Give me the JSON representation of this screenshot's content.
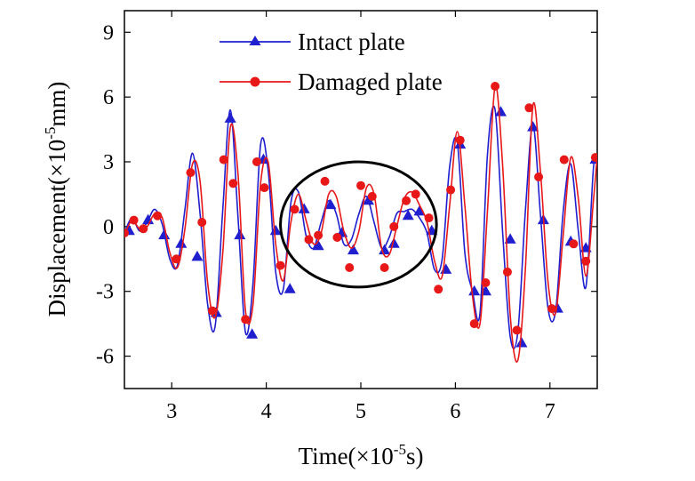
{
  "chart_data": {
    "type": "line",
    "title": "",
    "xlabel": {
      "prefix": "Time(×10",
      "exp": "-5",
      "suffix": "s)"
    },
    "ylabel": {
      "prefix": "Displacement(×10",
      "exp": "-5",
      "suffix": "mm)"
    },
    "xlim": [
      2.5,
      7.5
    ],
    "ylim": [
      -7.5,
      10
    ],
    "xticks": [
      3,
      4,
      5,
      6,
      7
    ],
    "yticks": [
      -6,
      -3,
      0,
      3,
      6,
      9
    ],
    "grid": false,
    "legend_position": "top",
    "annotation": "ellipse around 4.2–5.8 time region",
    "annotation_region": {
      "x": [
        4.15,
        5.8
      ],
      "y": [
        -2.8,
        3.0
      ]
    },
    "series": [
      {
        "name": "Intact plate",
        "color": "#1f1fd0",
        "marker": "triangle",
        "x": [
          2.5,
          2.58,
          2.66,
          2.74,
          2.82,
          2.9,
          2.98,
          3.06,
          3.14,
          3.22,
          3.3,
          3.38,
          3.46,
          3.54,
          3.62,
          3.7,
          3.78,
          3.86,
          3.94,
          4.02,
          4.1,
          4.18,
          4.26,
          4.34,
          4.42,
          4.5,
          4.58,
          4.66,
          4.74,
          4.82,
          4.9,
          4.98,
          5.06,
          5.14,
          5.22,
          5.3,
          5.38,
          5.46,
          5.54,
          5.62,
          5.7,
          5.78,
          5.86,
          5.94,
          6.02,
          6.1,
          6.18,
          6.26,
          6.34,
          6.42,
          6.5,
          6.58,
          6.66,
          6.74,
          6.82,
          6.9,
          6.98,
          7.06,
          7.14,
          7.22,
          7.3,
          7.38,
          7.46,
          7.5
        ],
        "values": [
          -0.3,
          0.4,
          -0.2,
          0.2,
          0.8,
          0.1,
          -1.5,
          -1.8,
          0.8,
          3.4,
          0.6,
          -3.6,
          -4.6,
          0.8,
          5.4,
          0.5,
          -4.9,
          -2.6,
          3.8,
          2.6,
          -2.1,
          -2.9,
          1.1,
          1.6,
          -0.4,
          -1.0,
          0.2,
          1.2,
          0.6,
          -0.8,
          -0.6,
          0.6,
          1.4,
          0.2,
          -1.0,
          -0.5,
          0.6,
          0.7,
          0.8,
          0.4,
          -0.3,
          -2.0,
          -1.5,
          2.8,
          3.9,
          -1.2,
          -3.0,
          -4.0,
          3.4,
          5.4,
          -0.3,
          -5.1,
          -4.9,
          0.7,
          4.7,
          0.5,
          -3.8,
          -3.9,
          0.7,
          2.9,
          -0.2,
          -2.8,
          2.7,
          3.1
        ],
        "markers_x": [
          2.55,
          2.75,
          2.92,
          3.1,
          3.27,
          3.47,
          3.62,
          3.72,
          3.85,
          3.97,
          4.1,
          4.25,
          4.4,
          4.55,
          4.68,
          4.8,
          4.92,
          5.08,
          5.25,
          5.35,
          5.5,
          5.62,
          5.75,
          5.9,
          6.05,
          6.2,
          6.32,
          6.48,
          6.58,
          6.7,
          6.82,
          6.93,
          7.08,
          7.22,
          7.38,
          7.48
        ],
        "markers_values": [
          -0.2,
          0.3,
          -0.4,
          -0.8,
          -1.4,
          -4.0,
          5.0,
          -0.4,
          -5.0,
          3.1,
          -0.2,
          -2.9,
          0.8,
          -0.9,
          1.0,
          -0.3,
          -1.1,
          1.2,
          -1.1,
          -0.8,
          0.5,
          0.7,
          -0.2,
          -2.0,
          3.8,
          -3.0,
          -3.0,
          5.3,
          -0.6,
          -5.4,
          4.6,
          0.3,
          -3.8,
          -0.7,
          -1.0,
          3.1
        ]
      },
      {
        "name": "Damaged plate",
        "color": "#e81818",
        "marker": "circle",
        "x": [
          2.5,
          2.58,
          2.66,
          2.74,
          2.82,
          2.9,
          2.98,
          3.06,
          3.14,
          3.22,
          3.3,
          3.38,
          3.46,
          3.54,
          3.62,
          3.7,
          3.78,
          3.86,
          3.94,
          4.02,
          4.1,
          4.18,
          4.26,
          4.34,
          4.42,
          4.5,
          4.58,
          4.66,
          4.74,
          4.82,
          4.9,
          4.98,
          5.06,
          5.14,
          5.22,
          5.3,
          5.38,
          5.46,
          5.54,
          5.62,
          5.7,
          5.78,
          5.86,
          5.94,
          6.02,
          6.1,
          6.18,
          6.26,
          6.34,
          6.42,
          6.5,
          6.58,
          6.66,
          6.74,
          6.82,
          6.9,
          6.98,
          7.06,
          7.14,
          7.22,
          7.3,
          7.38,
          7.46,
          7.5
        ],
        "values": [
          -0.4,
          0.3,
          -0.1,
          0.0,
          0.6,
          0.4,
          -1.2,
          -1.9,
          -0.1,
          2.9,
          2.1,
          -2.6,
          -4.2,
          -1.2,
          4.6,
          2.5,
          -3.9,
          -3.6,
          2.0,
          3.0,
          -0.8,
          -2.5,
          0.2,
          1.5,
          0.3,
          -0.8,
          -0.3,
          1.5,
          1.4,
          -0.2,
          -1.0,
          -0.2,
          1.8,
          1.5,
          -1.0,
          -1.3,
          0.0,
          1.3,
          1.6,
          1.0,
          0.2,
          -1.6,
          -2.3,
          1.0,
          4.4,
          1.0,
          -3.2,
          -4.5,
          0.8,
          6.5,
          2.8,
          -4.1,
          -6.2,
          -2.0,
          5.6,
          2.5,
          -2.6,
          -4.0,
          -0.4,
          3.2,
          1.3,
          -2.3,
          1.2,
          3.3
        ],
        "markers_x": [
          2.5,
          2.6,
          2.7,
          2.85,
          3.05,
          3.2,
          3.32,
          3.43,
          3.55,
          3.65,
          3.78,
          3.9,
          3.98,
          4.15,
          4.3,
          4.45,
          4.55,
          4.62,
          4.75,
          4.88,
          5.0,
          5.12,
          5.25,
          5.35,
          5.48,
          5.58,
          5.72,
          5.82,
          5.95,
          6.05,
          6.2,
          6.32,
          6.42,
          6.55,
          6.65,
          6.78,
          6.88,
          7.02,
          7.15,
          7.25,
          7.38,
          7.48
        ],
        "markers_values": [
          -0.3,
          0.3,
          -0.1,
          0.5,
          -1.5,
          2.5,
          0.2,
          -3.9,
          3.1,
          2.0,
          -4.3,
          3.0,
          1.8,
          -1.8,
          0.8,
          -0.6,
          -0.4,
          2.1,
          -0.5,
          -1.9,
          1.9,
          1.4,
          -1.9,
          0.0,
          1.2,
          1.5,
          0.4,
          -2.9,
          1.7,
          4.0,
          -4.5,
          -2.6,
          6.5,
          -2.1,
          -4.8,
          5.5,
          2.3,
          -3.8,
          3.1,
          -0.8,
          -1.6,
          3.2
        ]
      }
    ]
  }
}
